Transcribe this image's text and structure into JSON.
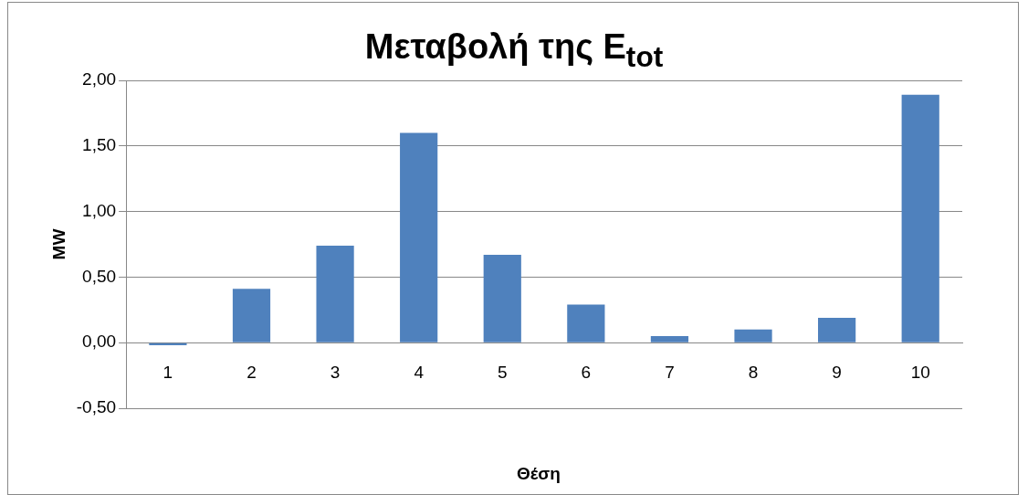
{
  "chart_data": {
    "type": "bar",
    "title": "Μεταβολή της E$_{tot}$",
    "xlabel": "Θέση",
    "ylabel": "MW",
    "categories": [
      "1",
      "2",
      "3",
      "4",
      "5",
      "6",
      "7",
      "8",
      "9",
      "10"
    ],
    "values": [
      -0.02,
      0.41,
      0.74,
      1.6,
      0.67,
      0.29,
      0.05,
      0.1,
      0.19,
      1.89
    ],
    "color": "#4f81bd",
    "ylim": [
      -0.5,
      2
    ],
    "yticks": [
      {
        "value": -0.5,
        "label": "-0,50"
      },
      {
        "value": 0,
        "label": "0,00"
      },
      {
        "value": 0.5,
        "label": "0,50"
      },
      {
        "value": 1,
        "label": "1,00"
      },
      {
        "value": 1.5,
        "label": "1,50"
      },
      {
        "value": 2,
        "label": "2,00"
      }
    ],
    "grid": "y"
  }
}
